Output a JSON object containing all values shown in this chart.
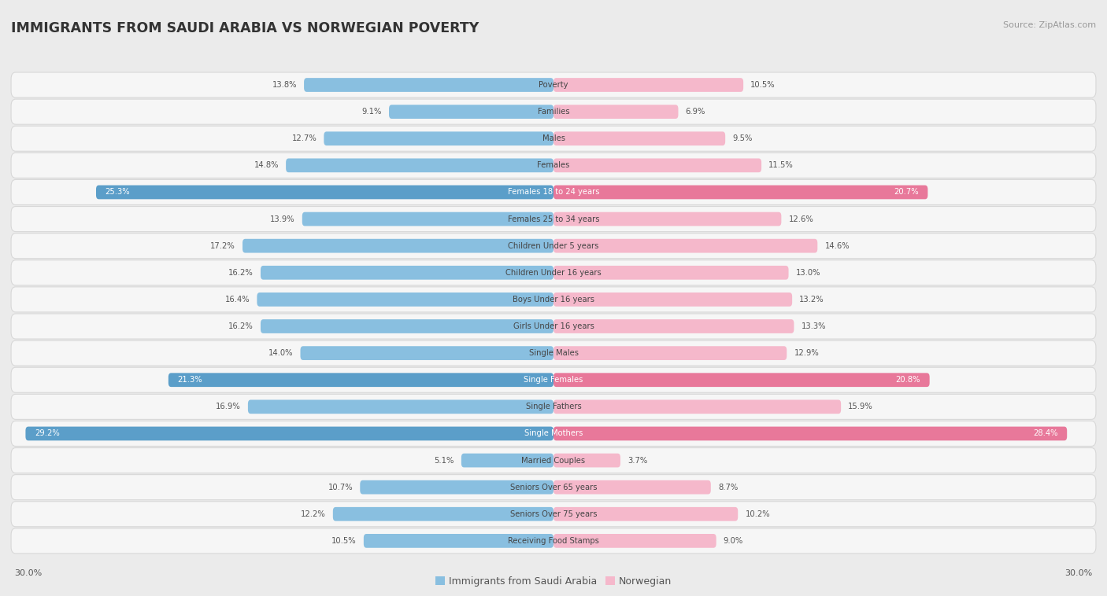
{
  "title": "IMMIGRANTS FROM SAUDI ARABIA VS NORWEGIAN POVERTY",
  "source": "Source: ZipAtlas.com",
  "categories": [
    "Poverty",
    "Families",
    "Males",
    "Females",
    "Females 18 to 24 years",
    "Females 25 to 34 years",
    "Children Under 5 years",
    "Children Under 16 years",
    "Boys Under 16 years",
    "Girls Under 16 years",
    "Single Males",
    "Single Females",
    "Single Fathers",
    "Single Mothers",
    "Married Couples",
    "Seniors Over 65 years",
    "Seniors Over 75 years",
    "Receiving Food Stamps"
  ],
  "left_values": [
    13.8,
    9.1,
    12.7,
    14.8,
    25.3,
    13.9,
    17.2,
    16.2,
    16.4,
    16.2,
    14.0,
    21.3,
    16.9,
    29.2,
    5.1,
    10.7,
    12.2,
    10.5
  ],
  "right_values": [
    10.5,
    6.9,
    9.5,
    11.5,
    20.7,
    12.6,
    14.6,
    13.0,
    13.2,
    13.3,
    12.9,
    20.8,
    15.9,
    28.4,
    3.7,
    8.7,
    10.2,
    9.0
  ],
  "max_val": 30.0,
  "left_color_normal": "#89BFE0",
  "right_color_normal": "#F5B8CB",
  "left_color_high": "#5B9EC9",
  "right_color_high": "#E8789A",
  "highlight_threshold": 20.0,
  "left_label": "Immigrants from Saudi Arabia",
  "right_label": "Norwegian",
  "bg_color": "#ebebeb",
  "row_color_even": "#f7f7f7",
  "row_color_odd": "#f0f0f0",
  "label_color_normal": "#444444",
  "label_color_high": "#ffffff",
  "value_color_inside": "#ffffff",
  "value_color_outside": "#555555"
}
